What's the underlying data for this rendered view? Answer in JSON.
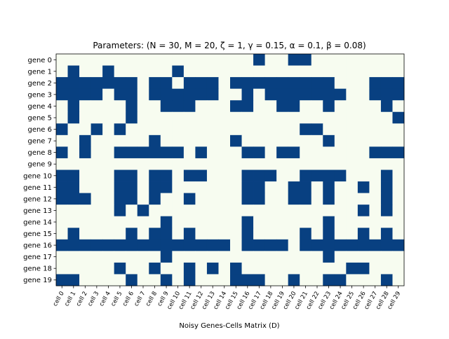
{
  "chart_data": {
    "type": "heatmap",
    "title": "Parameters: (N = 30, M = 20, ζ = 1, γ = 0.15, α = 0.1, β = 0.08)",
    "xlabel": "Noisy Genes-Cells Matrix (D)",
    "ylabel": "",
    "x_categories": [
      "cell 0",
      "cell 1",
      "cell 2",
      "cell 3",
      "cell 4",
      "cell 5",
      "cell 6",
      "cell 7",
      "cell 8",
      "cell 9",
      "cell 10",
      "cell 11",
      "cell 12",
      "cell 13",
      "cell 14",
      "cell 15",
      "cell 16",
      "cell 17",
      "cell 18",
      "cell 19",
      "cell 20",
      "cell 21",
      "cell 22",
      "cell 23",
      "cell 24",
      "cell 25",
      "cell 26",
      "cell 27",
      "cell 28",
      "cell 29"
    ],
    "y_categories": [
      "gene 0",
      "gene 1",
      "gene 2",
      "gene 3",
      "gene 4",
      "gene 5",
      "gene 6",
      "gene 7",
      "gene 8",
      "gene 9",
      "gene 10",
      "gene 11",
      "gene 12",
      "gene 13",
      "gene 14",
      "gene 15",
      "gene 16",
      "gene 17",
      "gene 18",
      "gene 19"
    ],
    "colors": {
      "zero": "#f7fcf0",
      "one": "#084081"
    },
    "values": [
      [
        0,
        0,
        0,
        0,
        0,
        0,
        0,
        0,
        0,
        0,
        0,
        0,
        0,
        0,
        0,
        0,
        0,
        1,
        0,
        0,
        1,
        1,
        0,
        0,
        0,
        0,
        0,
        0,
        0,
        0
      ],
      [
        0,
        1,
        0,
        0,
        1,
        0,
        0,
        0,
        0,
        0,
        1,
        0,
        0,
        0,
        0,
        0,
        0,
        0,
        0,
        0,
        0,
        0,
        0,
        0,
        0,
        0,
        0,
        0,
        0,
        0
      ],
      [
        1,
        1,
        1,
        1,
        1,
        1,
        1,
        0,
        1,
        1,
        0,
        1,
        1,
        1,
        0,
        1,
        1,
        1,
        1,
        1,
        1,
        1,
        1,
        1,
        0,
        0,
        0,
        1,
        1,
        1
      ],
      [
        1,
        1,
        1,
        1,
        0,
        1,
        1,
        0,
        1,
        1,
        1,
        1,
        1,
        1,
        0,
        0,
        1,
        0,
        1,
        1,
        1,
        1,
        1,
        1,
        1,
        0,
        0,
        1,
        1,
        1
      ],
      [
        0,
        1,
        0,
        0,
        0,
        0,
        1,
        0,
        0,
        1,
        1,
        1,
        0,
        0,
        0,
        1,
        1,
        0,
        0,
        1,
        1,
        0,
        0,
        1,
        0,
        0,
        0,
        0,
        1,
        0
      ],
      [
        0,
        1,
        0,
        0,
        0,
        0,
        1,
        0,
        0,
        0,
        0,
        0,
        0,
        0,
        0,
        0,
        0,
        0,
        0,
        0,
        0,
        0,
        0,
        0,
        0,
        0,
        0,
        0,
        0,
        1
      ],
      [
        1,
        0,
        0,
        1,
        0,
        1,
        0,
        0,
        0,
        0,
        0,
        0,
        0,
        0,
        0,
        0,
        0,
        0,
        0,
        0,
        0,
        1,
        1,
        0,
        0,
        0,
        0,
        0,
        0,
        0
      ],
      [
        0,
        0,
        1,
        0,
        0,
        0,
        0,
        0,
        1,
        0,
        0,
        0,
        0,
        0,
        0,
        1,
        0,
        0,
        0,
        0,
        0,
        0,
        0,
        1,
        0,
        0,
        0,
        0,
        0,
        0
      ],
      [
        1,
        0,
        1,
        0,
        0,
        1,
        1,
        1,
        1,
        1,
        1,
        0,
        1,
        0,
        0,
        0,
        1,
        1,
        0,
        1,
        1,
        0,
        0,
        0,
        0,
        0,
        0,
        1,
        1,
        1
      ],
      [
        0,
        0,
        0,
        0,
        0,
        0,
        0,
        0,
        0,
        0,
        0,
        0,
        0,
        0,
        0,
        0,
        0,
        0,
        0,
        0,
        0,
        0,
        0,
        0,
        0,
        0,
        0,
        0,
        0,
        0
      ],
      [
        1,
        1,
        0,
        0,
        0,
        1,
        1,
        0,
        1,
        1,
        0,
        1,
        1,
        0,
        0,
        0,
        1,
        1,
        1,
        0,
        0,
        1,
        1,
        1,
        1,
        0,
        0,
        0,
        1,
        0
      ],
      [
        1,
        1,
        0,
        0,
        0,
        1,
        1,
        0,
        1,
        1,
        0,
        0,
        0,
        0,
        0,
        0,
        1,
        1,
        0,
        0,
        1,
        1,
        0,
        1,
        0,
        0,
        1,
        0,
        1,
        0
      ],
      [
        1,
        1,
        1,
        0,
        0,
        1,
        1,
        0,
        1,
        0,
        0,
        1,
        0,
        0,
        0,
        0,
        1,
        1,
        0,
        0,
        1,
        1,
        0,
        1,
        0,
        0,
        0,
        0,
        1,
        0
      ],
      [
        0,
        0,
        0,
        0,
        0,
        1,
        0,
        1,
        0,
        0,
        0,
        0,
        0,
        0,
        0,
        0,
        0,
        0,
        0,
        0,
        0,
        0,
        0,
        0,
        0,
        0,
        1,
        0,
        1,
        0
      ],
      [
        0,
        0,
        0,
        0,
        0,
        0,
        0,
        0,
        0,
        1,
        0,
        0,
        0,
        0,
        0,
        0,
        1,
        0,
        0,
        0,
        0,
        0,
        0,
        1,
        0,
        0,
        0,
        0,
        0,
        0
      ],
      [
        0,
        1,
        0,
        0,
        0,
        0,
        1,
        0,
        1,
        1,
        0,
        1,
        0,
        0,
        0,
        0,
        1,
        0,
        0,
        0,
        0,
        1,
        0,
        1,
        0,
        0,
        1,
        0,
        1,
        0
      ],
      [
        1,
        1,
        1,
        1,
        1,
        1,
        1,
        1,
        1,
        1,
        1,
        1,
        1,
        1,
        1,
        0,
        1,
        1,
        1,
        1,
        0,
        1,
        1,
        1,
        1,
        1,
        1,
        1,
        1,
        1
      ],
      [
        0,
        0,
        0,
        0,
        0,
        0,
        0,
        0,
        0,
        1,
        0,
        0,
        0,
        0,
        0,
        0,
        0,
        0,
        0,
        0,
        0,
        0,
        0,
        1,
        0,
        0,
        0,
        0,
        0,
        0
      ],
      [
        0,
        0,
        0,
        0,
        0,
        1,
        0,
        0,
        1,
        0,
        0,
        1,
        0,
        1,
        0,
        1,
        0,
        0,
        0,
        0,
        0,
        0,
        0,
        0,
        0,
        1,
        1,
        0,
        0,
        0
      ],
      [
        1,
        1,
        0,
        0,
        0,
        0,
        1,
        0,
        0,
        1,
        0,
        1,
        0,
        0,
        0,
        1,
        1,
        1,
        0,
        0,
        1,
        0,
        0,
        1,
        1,
        0,
        0,
        0,
        1,
        0
      ]
    ]
  }
}
